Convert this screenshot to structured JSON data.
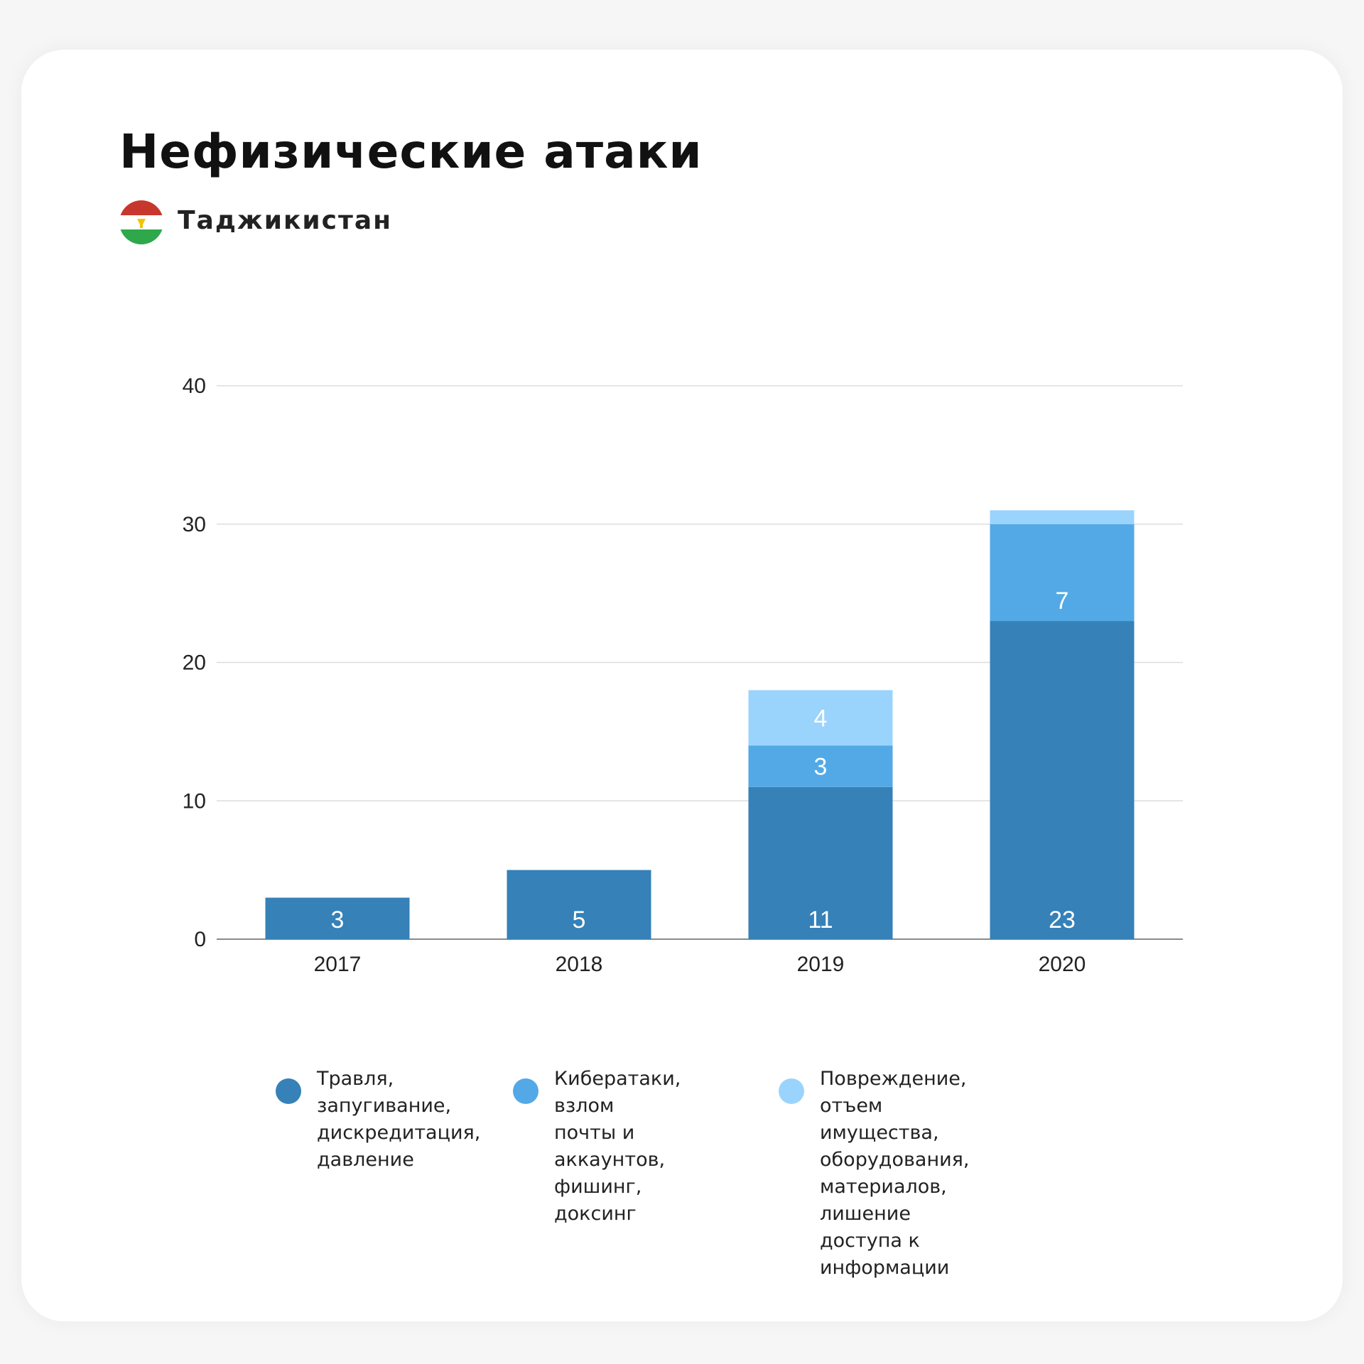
{
  "chart_data": {
    "type": "bar",
    "stacked": true,
    "title": "Нефизические атаки",
    "subtitle": "Таджикистан",
    "categories": [
      "2017",
      "2018",
      "2019",
      "2020"
    ],
    "series": [
      {
        "name": "Травля,\nзапугивание,\nдискредитация,\nдавление",
        "values": [
          3,
          5,
          11,
          23
        ],
        "color": "#3581b8",
        "labels": [
          "3",
          "5",
          "11",
          "23"
        ]
      },
      {
        "name": "Кибератаки,\nвзлом почты и\nаккаунтов,\nфишинг, доксинг",
        "values": [
          0,
          0,
          3,
          7
        ],
        "color": "#52a9e6",
        "labels": [
          "",
          "",
          "3",
          "7"
        ]
      },
      {
        "name": "Повреждение, отъем\nимущества, оборудования,\nматериалов, лишение\nдоступа к информации",
        "values": [
          0,
          0,
          4,
          1
        ],
        "color": "#9ad4fd",
        "labels": [
          "",
          "",
          "4",
          ""
        ]
      }
    ],
    "yticks": [
      "0",
      "10",
      "20",
      "30",
      "40"
    ],
    "ylim": [
      0,
      40
    ],
    "xlabel": "",
    "ylabel": "",
    "grid": true,
    "legend_position": "bottom"
  },
  "flag": {
    "icon": "tajikistan-flag-icon",
    "colors": {
      "top": "#c8372d",
      "middle": "#ffffff",
      "bottom": "#2ea84a",
      "emblem": "#f5c400"
    }
  }
}
